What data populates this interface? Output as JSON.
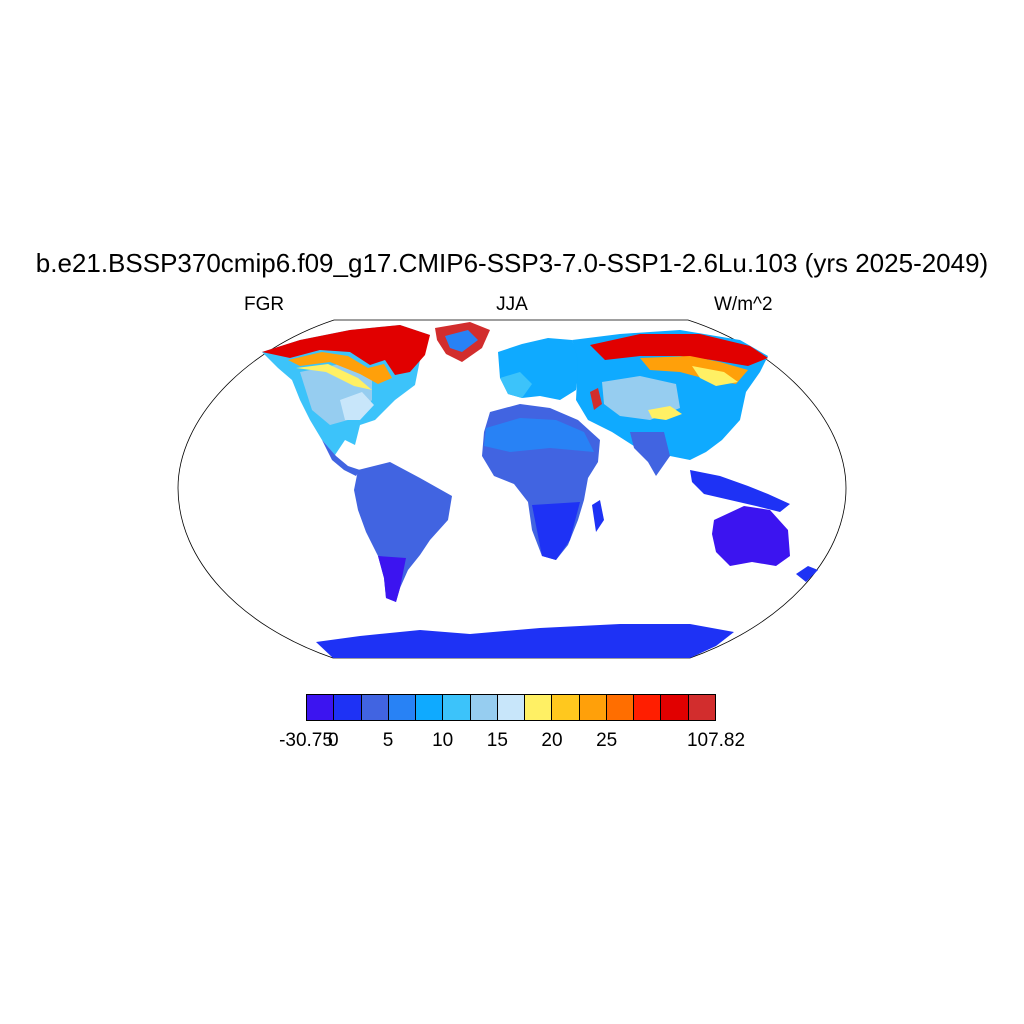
{
  "title": "b.e21.BSSP370cmip6.f09_g17.CMIP6-SSP3-7.0-SSP1-2.6Lu.103 (yrs 2025-2049)",
  "subtitle_left": "FGR",
  "subtitle_center": "JJA",
  "subtitle_right": "W/m^2",
  "colorbar": {
    "colors": [
      "#3c14f0",
      "#1e32f5",
      "#4164e1",
      "#2882f5",
      "#0faaff",
      "#3cc3fa",
      "#96cdf0",
      "#c8e6fa",
      "#fff064",
      "#ffc81e",
      "#ffa00a",
      "#ff6e00",
      "#ff1e00",
      "#e10000",
      "#d22d2d"
    ],
    "labels": [
      "-30.75",
      "0",
      "5",
      "10",
      "15",
      "20",
      "25",
      "107.82"
    ],
    "label_boundaries": [
      0,
      1,
      3,
      5,
      7,
      9,
      11,
      15
    ]
  },
  "map": {
    "projection": "robinson",
    "field": "FGR"
  }
}
